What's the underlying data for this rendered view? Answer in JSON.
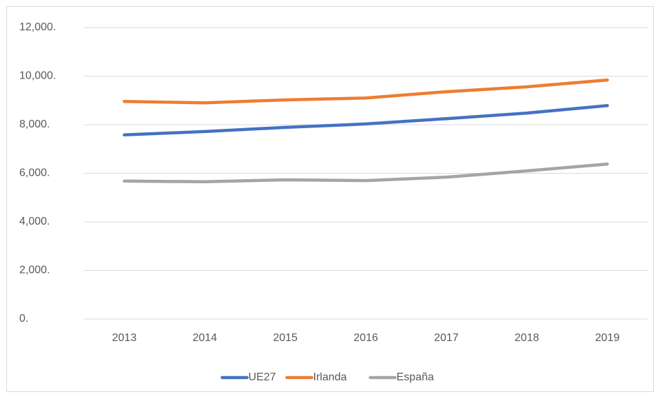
{
  "chart_data": {
    "type": "line",
    "categories": [
      "2013",
      "2014",
      "2015",
      "2016",
      "2017",
      "2018",
      "2019"
    ],
    "series": [
      {
        "name": "UE27",
        "color": "#4472c4",
        "values": [
          7580,
          7720,
          7890,
          8030,
          8250,
          8480,
          8790
        ]
      },
      {
        "name": "Irlanda",
        "color": "#ed7d31",
        "values": [
          8960,
          8900,
          9020,
          9100,
          9360,
          9560,
          9840
        ]
      },
      {
        "name": "España",
        "color": "#a5a5a5",
        "values": [
          5680,
          5650,
          5730,
          5700,
          5840,
          6100,
          6380
        ]
      }
    ],
    "ylim": [
      0,
      12000
    ],
    "yticks": [
      {
        "value": 0,
        "label": "0."
      },
      {
        "value": 2000,
        "label": "2,000."
      },
      {
        "value": 4000,
        "label": "4,000."
      },
      {
        "value": 6000,
        "label": "6,000."
      },
      {
        "value": 8000,
        "label": "8,000."
      },
      {
        "value": 10000,
        "label": "10,000."
      },
      {
        "value": 12000,
        "label": "12,000."
      }
    ],
    "grid": true,
    "legend": "bottom"
  }
}
